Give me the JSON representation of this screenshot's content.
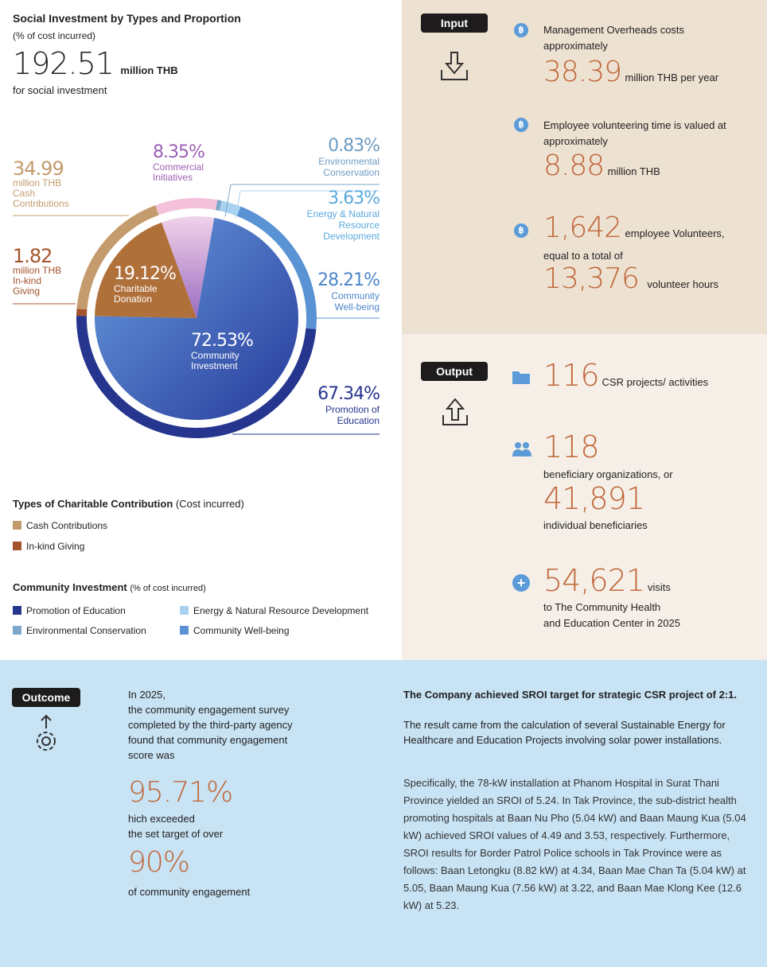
{
  "header": {
    "title": "Social Investment by Types and Proportion",
    "subtitle": "(% of cost incurred)",
    "total_value": "192.51",
    "total_unit": "million THB",
    "total_caption": "for social investment"
  },
  "chart_data": {
    "type": "pie",
    "inner_pie": [
      {
        "name": "Community Investment",
        "value": 72.53,
        "label": "72.53%",
        "color": "#3f67c0"
      },
      {
        "name": "Charitable Donation",
        "value": 19.12,
        "label": "19.12%",
        "color": "#b0703a"
      },
      {
        "name": "Commercial Initiatives",
        "value": 8.35,
        "label": "8.35%",
        "color": "#c89ad2"
      }
    ],
    "outer_ring": [
      {
        "name": "Environmental Conservation",
        "parent": "Community Investment",
        "value_pct_of_parent": 0.83,
        "label": "0.83%",
        "color": "#7ea7cc"
      },
      {
        "name": "Energy & Natural Resource Development",
        "parent": "Community Investment",
        "value_pct_of_parent": 3.63,
        "label": "3.63%",
        "color": "#a9d2f0"
      },
      {
        "name": "Community Well-being",
        "parent": "Community Investment",
        "value_pct_of_parent": 28.21,
        "label": "28.21%",
        "color": "#5a93d4"
      },
      {
        "name": "Promotion of Education",
        "parent": "Community Investment",
        "value_pct_of_parent": 67.34,
        "label": "67.34%",
        "color": "#26358e"
      },
      {
        "name": "In-kind Giving",
        "parent": "Charitable Donation",
        "value_million_thb": 1.82,
        "label": "1.82",
        "color": "#a5532c"
      },
      {
        "name": "Cash Contributions",
        "parent": "Charitable Donation",
        "value_million_thb": 34.99,
        "label": "34.99",
        "color": "#c49b6d"
      },
      {
        "name": "Commercial Initiatives",
        "parent": "Commercial Initiatives",
        "value_pct_of_parent": 100,
        "color": "#f4c1da"
      }
    ],
    "labels": {
      "commercial_pct": "8.35%",
      "commercial_name": "Commercial Initiatives",
      "charitable_pct": "19.12%",
      "charitable_name": "Charitable Donation",
      "ci_pct": "72.53%",
      "ci_name": "Community Investment",
      "cash_value": "34.99",
      "cash_unit": "million THB",
      "cash_name": "Cash Contributions",
      "inkind_value": "1.82",
      "inkind_unit": "million THB",
      "inkind_name": "In-kind Giving",
      "env_pct": "0.83%",
      "env_name": "Environmental Conservation",
      "energy_pct": "3.63%",
      "energy_name": "Energy & Natural Resource Development",
      "wellbeing_pct": "28.21%",
      "wellbeing_name": "Community Well-being",
      "edu_pct": "67.34%",
      "edu_name": "Promotion of Education"
    }
  },
  "legend": {
    "charitable_title": "Types of Charitable Contribution",
    "charitable_note": "(Cost incurred)",
    "charitable_items": [
      {
        "label": "Cash Contributions",
        "color": "#c49b6d"
      },
      {
        "label": "In-kind Giving",
        "color": "#a5532c"
      }
    ],
    "ci_title": "Community Investment",
    "ci_note": "(% of cost incurred)",
    "ci_items": [
      {
        "label": "Promotion of Education",
        "color": "#26358e"
      },
      {
        "label": "Energy & Natural Resource Development",
        "color": "#a9d2f0"
      },
      {
        "label": "Environmental Conservation",
        "color": "#7ea7cc"
      },
      {
        "label": "Community Well-being",
        "color": "#5a93d4"
      }
    ]
  },
  "input": {
    "badge": "Input",
    "icon": "download-tray-icon",
    "item1_text": "Management Overheads costs approximately",
    "item1_value": "38.39",
    "item1_unit": "million THB per year",
    "item2_text": "Employee volunteering time is valued at approximately",
    "item2_value": "8.88",
    "item2_unit": "million THB",
    "item3_value": "1,642",
    "item3_unit": "employee Volunteers,",
    "item3_text": "equal to a total of",
    "item3_value2": "13,376",
    "item3_unit2": "volunteer hours",
    "bullet_icon": "baht-coin-icon"
  },
  "output": {
    "badge": "Output",
    "icon": "upload-tray-icon",
    "projects_value": "116",
    "projects_unit": "CSR projects/ activities",
    "orgs_value": "118",
    "orgs_text": "beneficiary organizations, or",
    "individuals_value": "41,891",
    "individuals_text": "individual beneficiaries",
    "visits_value": "54,621",
    "visits_unit": "visits",
    "visits_text1": "to The Community Health",
    "visits_text2": "and Education Center in 2025"
  },
  "outcome": {
    "badge": "Outcome",
    "intro": [
      "In 2025,",
      "the community engagement survey",
      "completed by the third-party agency",
      "found that community engagement",
      "score was"
    ],
    "score": "95.71%",
    "exceed_text": [
      "hich exceeded",
      "the set target of over"
    ],
    "target": "90%",
    "target_text": "of community engagement",
    "sroi_heading": "The Company achieved SROI target for strategic CSR project of 2:1.",
    "sroi_sub": "The result came from the calculation of several Sustainable Energy for Healthcare and Education Projects involving solar power installations.",
    "sroi_detail": "Specifically, the 78-kW installation at Phanom Hospital in Surat Thani Province yielded an SROI of 5.24. In Tak Province, the sub-district health promoting hospitals at Baan Nu Pho (5.04 kW) and Baan Maung Kua (5.04 kW) achieved SROI values of 4.49 and 3.53, respectively. Furthermore, SROI results for Border Patrol Police schools in Tak Province were as follows: Baan Letongku (8.82 kW) at 4.34, Baan Mae Chan Ta (5.04 kW) at 5.05, Baan Maung Kua (7.56 kW) at 3.22, and Baan Mae Klong Kee (12.6 kW) at 5.23."
  },
  "colors": {
    "accent_number": "#c0673a",
    "input_bg": "#ede1d1",
    "output_bg": "#f6efe7",
    "outcome_bg": "#c8e3f4",
    "icon_blue": "#5b9bd8"
  }
}
